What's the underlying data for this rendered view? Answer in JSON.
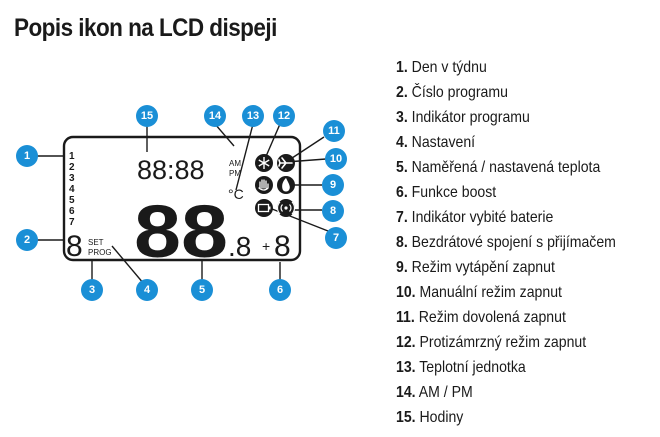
{
  "title": "Popis ikon na LCD dispeji",
  "colors": {
    "badge": "#1a8fd6",
    "ink": "#1a1a1a",
    "background": "#ffffff"
  },
  "display": {
    "clock": "88:88",
    "temperature": "88",
    "decimal": ".8",
    "plus": "+",
    "boost_digit": "8",
    "program_digit": "8",
    "days": [
      "1",
      "2",
      "3",
      "4",
      "5",
      "6",
      "7"
    ],
    "am": "AM",
    "pm": "PM",
    "unit": "°C",
    "set": "SET",
    "prog": "PROG"
  },
  "badges": [
    "1",
    "2",
    "3",
    "4",
    "5",
    "6",
    "7",
    "8",
    "9",
    "10",
    "11",
    "12",
    "13",
    "14",
    "15"
  ],
  "icons": [
    "snowflake-icon",
    "plane-icon",
    "hand-icon",
    "flame-icon",
    "battery-icon",
    "wireless-icon"
  ],
  "legend": [
    {
      "num": "1.",
      "text": "Den v týdnu"
    },
    {
      "num": "2.",
      "text": "Číslo programu"
    },
    {
      "num": "3.",
      "text": "Indikátor programu"
    },
    {
      "num": "4.",
      "text": "Nastavení"
    },
    {
      "num": "5.",
      "text": "Naměřená / nastavená teplota"
    },
    {
      "num": "6.",
      "text": "Funkce boost"
    },
    {
      "num": "7.",
      "text": "Indikátor vybité baterie"
    },
    {
      "num": "8.",
      "text": "Bezdrátové spojení s přijímačem"
    },
    {
      "num": "9.",
      "text": "Režim vytápění zapnut"
    },
    {
      "num": "10.",
      "text": "Manuální režim zapnut"
    },
    {
      "num": "11.",
      "text": "Režim dovolená zapnut"
    },
    {
      "num": "12.",
      "text": "Protizámrzný režim zapnut"
    },
    {
      "num": "13.",
      "text": "Teplotní jednotka"
    },
    {
      "num": "14.",
      "text": "AM / PM"
    },
    {
      "num": "15.",
      "text": "Hodiny"
    }
  ]
}
